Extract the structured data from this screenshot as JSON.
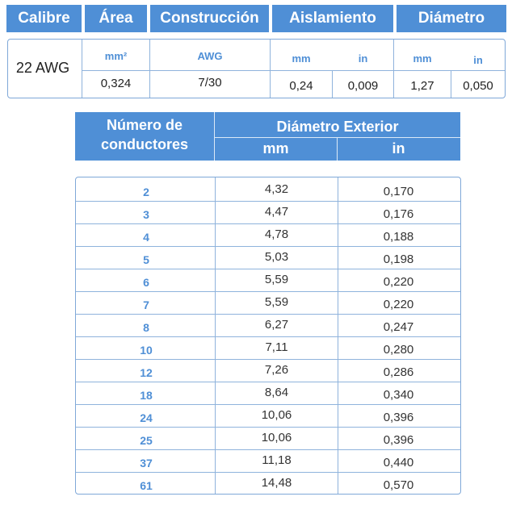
{
  "top_table": {
    "headers": [
      "Calibre",
      "Área",
      "Construcción",
      "Aislamiento",
      "Diámetro"
    ],
    "units": {
      "area": "mm²",
      "construction": "AWG",
      "ins_mm": "mm",
      "ins_in": "in",
      "dia_mm": "mm",
      "dia_in": "in"
    },
    "gauge": "22 AWG",
    "values": {
      "area": "0,324",
      "construction": "7/30",
      "ins_mm": "0,24",
      "ins_in": "0,009",
      "dia_mm": "1,27",
      "dia_in": "0,050"
    }
  },
  "bottom_table": {
    "col1_header_line1": "Número de",
    "col1_header_line2": "conductores",
    "group_header": "Diámetro Exterior",
    "unit_mm": "mm",
    "unit_in": "in",
    "rows": [
      {
        "n": "2",
        "mm": "4,32",
        "in": "0,170"
      },
      {
        "n": "3",
        "mm": "4,47",
        "in": "0,176"
      },
      {
        "n": "4",
        "mm": "4,78",
        "in": "0,188"
      },
      {
        "n": "5",
        "mm": "5,03",
        "in": "0,198"
      },
      {
        "n": "6",
        "mm": "5,59",
        "in": "0,220"
      },
      {
        "n": "7",
        "mm": "5,59",
        "in": "0,220"
      },
      {
        "n": "8",
        "mm": "6,27",
        "in": "0,247"
      },
      {
        "n": "10",
        "mm": "7,11",
        "in": "0,280"
      },
      {
        "n": "12",
        "mm": "7,26",
        "in": "0,286"
      },
      {
        "n": "18",
        "mm": "8,64",
        "in": "0,340"
      },
      {
        "n": "24",
        "mm": "10,06",
        "in": "0,396"
      },
      {
        "n": "25",
        "mm": "10,06",
        "in": "0,396"
      },
      {
        "n": "37",
        "mm": "11,18",
        "in": "0,440"
      },
      {
        "n": "61",
        "mm": "14,48",
        "in": "0,570"
      }
    ]
  }
}
